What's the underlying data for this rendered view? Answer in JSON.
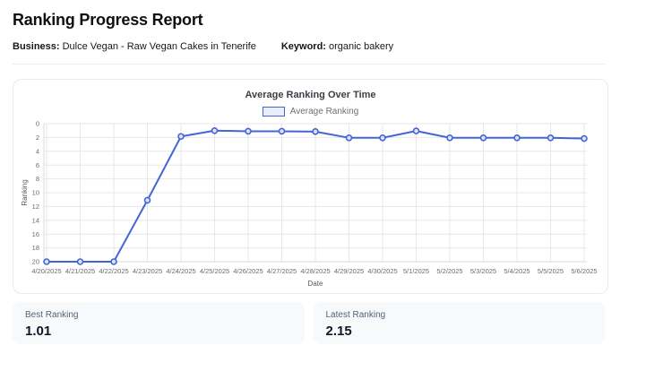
{
  "report": {
    "title": "Ranking Progress Report",
    "business_label": "Business:",
    "business_value": "Dulce Vegan - Raw Vegan Cakes in Tenerife",
    "keyword_label": "Keyword:",
    "keyword_value": "organic bakery"
  },
  "chart_data": {
    "type": "line",
    "title": "Average Ranking Over Time",
    "legend": [
      "Average Ranking"
    ],
    "legend_position": "top",
    "xlabel": "Date",
    "ylabel": "Ranking",
    "x": [
      "4/20/2025",
      "4/21/2025",
      "4/22/2025",
      "4/23/2025",
      "4/24/2025",
      "4/25/2025",
      "4/26/2025",
      "4/27/2025",
      "4/28/2025",
      "4/29/2025",
      "4/30/2025",
      "5/1/2025",
      "5/2/2025",
      "5/3/2025",
      "5/4/2025",
      "5/5/2025",
      "5/6/2025"
    ],
    "series": [
      {
        "name": "Average Ranking",
        "values": [
          20,
          20,
          20,
          11.1,
          1.85,
          1.01,
          1.1,
          1.1,
          1.15,
          2.05,
          2.05,
          1.05,
          2.05,
          2.05,
          2.05,
          2.05,
          2.15
        ]
      }
    ],
    "ylim": [
      0,
      20
    ],
    "y_axis_reversed": true,
    "y_ticks": [
      0,
      2,
      4,
      6,
      8,
      10,
      12,
      14,
      16,
      18,
      20
    ],
    "grid": true,
    "colors": {
      "line": "#4565d6",
      "point_fill": "#dde4f8",
      "legend_fill": "#e8eefb",
      "grid": "#e7e7e9",
      "axis": "#d9dbdf"
    }
  },
  "stats": [
    {
      "label": "Best Ranking",
      "value": "1.01"
    },
    {
      "label": "Latest Ranking",
      "value": "2.15"
    }
  ]
}
